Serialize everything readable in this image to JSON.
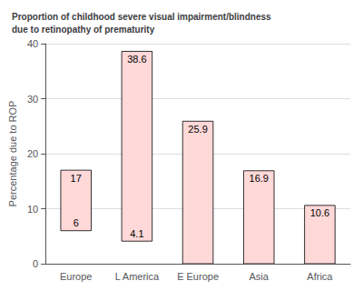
{
  "chart_data": {
    "type": "bar",
    "title": "Proportion of childhood severe visual impairment/blindness\ndue to retinopathy of prematurity",
    "categories": [
      "Europe",
      "L America",
      "E Europe",
      "Asia",
      "Africa"
    ],
    "values": [
      17.0,
      38.6,
      25.9,
      16.9,
      10.6
    ],
    "bottom": [
      6.0,
      4.1,
      0.0,
      0.0,
      0.0
    ],
    "color": "#ffd8d8",
    "ylabel": "Percentage due to ROP",
    "ylim": [
      0,
      40
    ],
    "yticks": [
      0,
      10,
      20,
      30,
      40
    ],
    "grid": true,
    "data_labels": true
  }
}
